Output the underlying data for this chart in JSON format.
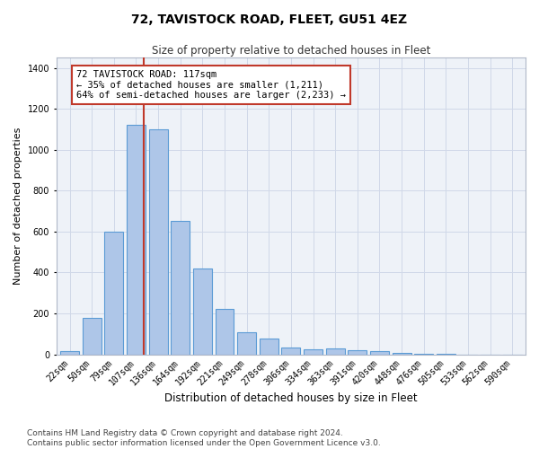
{
  "title": "72, TAVISTOCK ROAD, FLEET, GU51 4EZ",
  "subtitle": "Size of property relative to detached houses in Fleet",
  "xlabel": "Distribution of detached houses by size in Fleet",
  "ylabel": "Number of detached properties",
  "categories": [
    "22sqm",
    "50sqm",
    "79sqm",
    "107sqm",
    "136sqm",
    "164sqm",
    "192sqm",
    "221sqm",
    "249sqm",
    "278sqm",
    "306sqm",
    "334sqm",
    "363sqm",
    "391sqm",
    "420sqm",
    "448sqm",
    "476sqm",
    "505sqm",
    "533sqm",
    "562sqm",
    "590sqm"
  ],
  "values": [
    15,
    180,
    600,
    1120,
    1100,
    650,
    420,
    220,
    110,
    75,
    35,
    25,
    30,
    20,
    15,
    5,
    2,
    1,
    0,
    0,
    0
  ],
  "bar_color": "#aec6e8",
  "bar_edge_color": "#5b9bd5",
  "bar_edge_width": 0.8,
  "vline_color": "#c0392b",
  "annotation_text": "72 TAVISTOCK ROAD: 117sqm\n← 35% of detached houses are smaller (1,211)\n64% of semi-detached houses are larger (2,233) →",
  "annotation_box_color": "#c0392b",
  "annotation_text_color": "#000000",
  "annotation_fontsize": 7.5,
  "ylim": [
    0,
    1450
  ],
  "yticks": [
    0,
    200,
    400,
    600,
    800,
    1000,
    1200,
    1400
  ],
  "title_fontsize": 10,
  "subtitle_fontsize": 8.5,
  "xlabel_fontsize": 8.5,
  "ylabel_fontsize": 8,
  "tick_fontsize": 7,
  "footer_text": "Contains HM Land Registry data © Crown copyright and database right 2024.\nContains public sector information licensed under the Open Government Licence v3.0.",
  "footer_fontsize": 6.5,
  "background_color": "#ffffff",
  "plot_bg_color": "#eef2f8",
  "grid_color": "#d0d8e8",
  "fig_width": 6.0,
  "fig_height": 5.0,
  "dpi": 100
}
